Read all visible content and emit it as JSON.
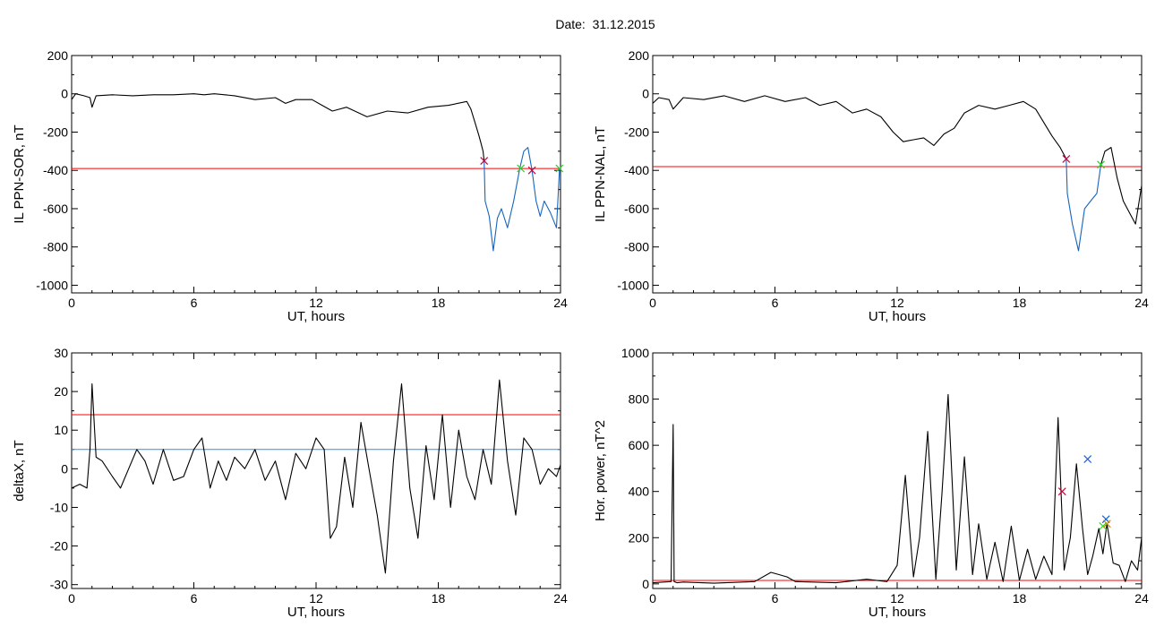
{
  "header": {
    "date_label": "Date:",
    "date_value": "31.12.2015"
  },
  "colors": {
    "trace": "#000000",
    "threshold_red": "#ff0000",
    "threshold_blue": "#1e90ff",
    "highlight_blue": "#1565c0",
    "marker_red": "#d0003a",
    "marker_green": "#33cc33",
    "marker_blue": "#1e5fd0",
    "marker_orange": "#cc8800"
  },
  "chart_data": [
    {
      "id": "ppn-sor",
      "type": "line",
      "xlabel": "UT, hours",
      "ylabel": "IL PPN-SOR, nT",
      "xlim": [
        0,
        24
      ],
      "ylim": [
        -1040,
        200
      ],
      "xticks": [
        0,
        6,
        12,
        18,
        24
      ],
      "yticks": [
        200,
        0,
        -200,
        -400,
        -600,
        -800,
        -1000
      ],
      "grid": false,
      "series": [
        {
          "role": "trace",
          "color": "#000000",
          "x": [
            0,
            0.2,
            0.6,
            0.9,
            1.0,
            1.2,
            2,
            3,
            4,
            5,
            6,
            6.5,
            7,
            8,
            9,
            10,
            10.5,
            11,
            11.8,
            12.3,
            12.8,
            13.5,
            14.5,
            15.5,
            16.5,
            17.5,
            18.5,
            19.4,
            19.6,
            19.8,
            20.0,
            20.1,
            20.2,
            20.25
          ],
          "y": [
            -30,
            0,
            -10,
            -20,
            -70,
            -10,
            -5,
            -10,
            -5,
            -5,
            0,
            -5,
            0,
            -10,
            -30,
            -20,
            -50,
            -30,
            -30,
            -60,
            -90,
            -70,
            -120,
            -90,
            -100,
            -70,
            -60,
            -40,
            -80,
            -150,
            -220,
            -260,
            -300,
            -350
          ]
        },
        {
          "role": "highlight",
          "color": "#1565c0",
          "x": [
            20.25,
            20.3,
            20.5,
            20.7,
            20.9,
            21.1,
            21.4,
            21.7,
            22.0,
            22.2,
            22.4,
            22.6,
            22.8,
            23.0,
            23.2,
            23.5,
            23.8,
            23.95
          ],
          "y": [
            -350,
            -560,
            -640,
            -820,
            -650,
            -600,
            -700,
            -560,
            -390,
            -300,
            -280,
            -400,
            -560,
            -640,
            -560,
            -620,
            -700,
            -390
          ]
        }
      ],
      "thresholds": [
        {
          "y": -390,
          "color": "#ff0000"
        }
      ],
      "markers": [
        {
          "x": 20.25,
          "y": -350,
          "color": "#d0003a"
        },
        {
          "x": 22.05,
          "y": -390,
          "color": "#33cc33"
        },
        {
          "x": 22.6,
          "y": -400,
          "color": "#d0003a"
        },
        {
          "x": 23.95,
          "y": -390,
          "color": "#33cc33"
        }
      ]
    },
    {
      "id": "ppn-nal",
      "type": "line",
      "xlabel": "UT, hours",
      "ylabel": "IL PPN-NAL, nT",
      "xlim": [
        0,
        24
      ],
      "ylim": [
        -1040,
        200
      ],
      "xticks": [
        0,
        6,
        12,
        18,
        24
      ],
      "yticks": [
        200,
        0,
        -200,
        -400,
        -600,
        -800,
        -1000
      ],
      "grid": false,
      "series": [
        {
          "role": "trace",
          "color": "#000000",
          "x": [
            0,
            0.3,
            0.8,
            1.0,
            1.5,
            2.5,
            3.5,
            4.5,
            5.5,
            6.5,
            7.5,
            8.2,
            9.0,
            9.8,
            10.5,
            11.2,
            11.8,
            12.3,
            12.8,
            13.3,
            13.8,
            14.3,
            14.8,
            15.3,
            16.0,
            16.8,
            17.5,
            18.2,
            18.8,
            19.2,
            19.6,
            20.0,
            20.3
          ],
          "y": [
            -50,
            -20,
            -30,
            -80,
            -20,
            -30,
            -10,
            -40,
            -10,
            -40,
            -20,
            -60,
            -40,
            -100,
            -80,
            -120,
            -200,
            -250,
            -240,
            -230,
            -270,
            -210,
            -180,
            -100,
            -60,
            -80,
            -60,
            -40,
            -80,
            -150,
            -220,
            -280,
            -340
          ]
        },
        {
          "role": "highlight",
          "color": "#1565c0",
          "x": [
            20.3,
            20.35,
            20.6,
            20.9,
            21.2,
            21.5,
            21.8,
            22.0
          ],
          "y": [
            -340,
            -520,
            -680,
            -820,
            -600,
            -560,
            -520,
            -370
          ]
        },
        {
          "role": "trace",
          "color": "#000000",
          "x": [
            22.0,
            22.2,
            22.5,
            22.8,
            23.1,
            23.4,
            23.7,
            24.0
          ],
          "y": [
            -370,
            -300,
            -280,
            -440,
            -560,
            -620,
            -680,
            -480
          ]
        }
      ],
      "thresholds": [
        {
          "y": -380,
          "color": "#ff0000"
        }
      ],
      "markers": [
        {
          "x": 20.3,
          "y": -340,
          "color": "#d0003a"
        },
        {
          "x": 22.0,
          "y": -370,
          "color": "#33cc33"
        }
      ]
    },
    {
      "id": "deltax",
      "type": "line",
      "xlabel": "UT, hours",
      "ylabel": "deltaX, nT",
      "xlim": [
        0,
        24
      ],
      "ylim": [
        -31,
        30
      ],
      "xticks": [
        0,
        6,
        12,
        18,
        24
      ],
      "yticks": [
        30,
        20,
        10,
        0,
        -10,
        -20,
        -30
      ],
      "grid": false,
      "series": [
        {
          "role": "trace",
          "color": "#000000",
          "x": [
            0,
            0.4,
            0.75,
            0.9,
            1.0,
            1.2,
            1.5,
            2.0,
            2.4,
            2.8,
            3.2,
            3.6,
            4.0,
            4.5,
            5.0,
            5.5,
            6.0,
            6.4,
            6.8,
            7.2,
            7.6,
            8.0,
            8.5,
            9.0,
            9.5,
            10.0,
            10.5,
            11.0,
            11.5,
            12.0,
            12.4,
            12.7,
            13.0,
            13.4,
            13.8,
            14.2,
            14.6,
            15.0,
            15.4,
            15.8,
            16.2,
            16.6,
            17.0,
            17.4,
            17.8,
            18.2,
            18.6,
            19.0,
            19.4,
            19.8,
            20.2,
            20.6,
            21.0,
            21.4,
            21.8,
            22.2,
            22.6,
            23.0,
            23.4,
            23.8,
            24.0
          ],
          "y": [
            -5,
            -4,
            -5,
            5,
            22,
            3,
            2,
            -2,
            -5,
            0,
            5,
            2,
            -4,
            5,
            -3,
            -2,
            5,
            8,
            -5,
            2,
            -3,
            3,
            0,
            5,
            -3,
            2,
            -8,
            4,
            0,
            8,
            5,
            -18,
            -15,
            3,
            -10,
            12,
            0,
            -12,
            -27,
            2,
            22,
            -5,
            -18,
            6,
            -8,
            14,
            -10,
            10,
            -2,
            -8,
            5,
            -4,
            23,
            2,
            -12,
            8,
            5,
            -4,
            0,
            -2,
            1
          ]
        }
      ],
      "thresholds": [
        {
          "y": 14,
          "color": "#ff0000"
        },
        {
          "y": 5,
          "color": "#1e90ff"
        }
      ],
      "markers": []
    },
    {
      "id": "hor-power",
      "type": "line",
      "xlabel": "UT, hours",
      "ylabel": "Hor. power, nT^2",
      "xlim": [
        0,
        24
      ],
      "ylim": [
        -20,
        1000
      ],
      "xticks": [
        0,
        6,
        12,
        18,
        24
      ],
      "yticks": [
        1000,
        800,
        600,
        400,
        200,
        0
      ],
      "grid": false,
      "series": [
        {
          "role": "trace",
          "color": "#000000",
          "x": [
            0,
            0.9,
            1.0,
            1.05,
            1.2,
            1.5,
            3,
            5,
            5.8,
            6.2,
            6.6,
            7,
            9,
            10.5,
            11.5,
            12.0,
            12.4,
            12.8,
            13.1,
            13.5,
            13.9,
            14.2,
            14.5,
            14.9,
            15.3,
            15.7,
            16.0,
            16.4,
            16.8,
            17.2,
            17.6,
            18.0,
            18.4,
            18.8,
            19.2,
            19.6,
            19.9,
            20.2,
            20.5,
            20.8,
            21.1,
            21.35,
            21.6,
            21.9,
            22.1,
            22.3,
            22.6,
            22.9,
            23.2,
            23.5,
            23.8,
            24.0
          ],
          "y": [
            5,
            10,
            690,
            10,
            5,
            8,
            3,
            10,
            50,
            40,
            30,
            10,
            5,
            20,
            10,
            80,
            470,
            30,
            200,
            660,
            20,
            390,
            820,
            60,
            550,
            40,
            260,
            20,
            180,
            10,
            250,
            15,
            150,
            20,
            120,
            40,
            720,
            60,
            200,
            520,
            240,
            40,
            120,
            240,
            130,
            260,
            90,
            80,
            10,
            100,
            60,
            200
          ]
        }
      ],
      "thresholds": [
        {
          "y": 15,
          "color": "#ff0000"
        }
      ],
      "markers": [
        {
          "x": 20.1,
          "y": 400,
          "color": "#d0003a"
        },
        {
          "x": 21.35,
          "y": 540,
          "color": "#1e5fd0"
        },
        {
          "x": 22.1,
          "y": 250,
          "color": "#33cc33"
        },
        {
          "x": 22.25,
          "y": 280,
          "color": "#1e5fd0"
        },
        {
          "x": 22.3,
          "y": 260,
          "color": "#cc8800"
        }
      ]
    }
  ]
}
